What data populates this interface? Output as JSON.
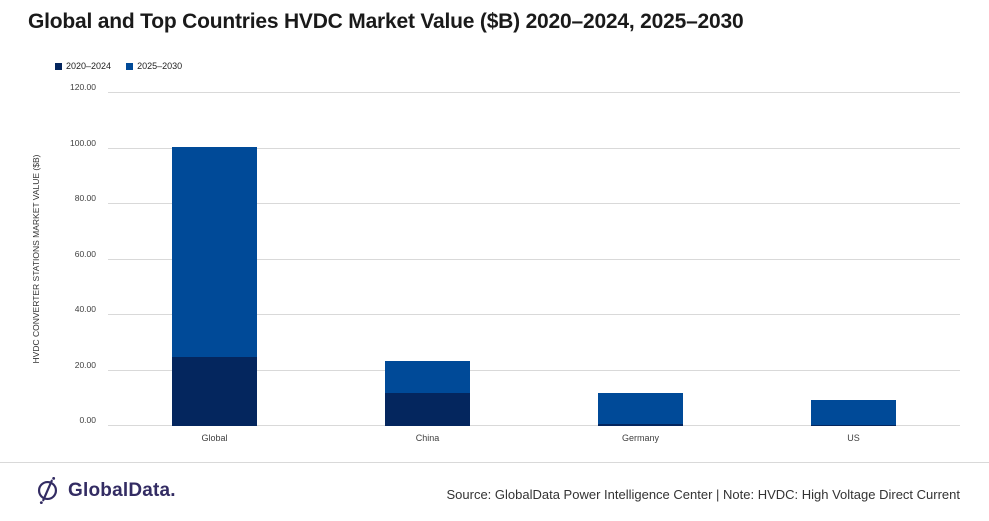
{
  "title": "Global and Top Countries HVDC Market Value ($B) 2020–2024, 2025–2030",
  "chart_data": {
    "type": "bar",
    "stacked": true,
    "title": "Global and Top Countries HVDC Market Value ($B) 2020–2024, 2025–2030",
    "categories": [
      "Global",
      "China",
      "Germany",
      "US"
    ],
    "series": [
      {
        "name": "2020–2024",
        "color": "#04265e",
        "values": [
          25.0,
          12.0,
          0.6,
          0.3
        ]
      },
      {
        "name": "2025–2030",
        "color": "#004a98",
        "values": [
          75.5,
          11.5,
          11.3,
          9.2
        ]
      }
    ],
    "totals": [
      100.5,
      23.5,
      11.9,
      9.5
    ],
    "xlabel": "",
    "ylabel": "HVDC CONVERTER STATIONS MARKET VALUE ($B)",
    "ylim": [
      0,
      120
    ],
    "ytick_labels": [
      "0.00",
      "20.00",
      "40.00",
      "60.00",
      "80.00",
      "100.00",
      "120.00"
    ],
    "grid": true,
    "legend_position": "top-left"
  },
  "colors": {
    "series_2020_2024": "#04265e",
    "series_2025_2030": "#004a98",
    "gridline": "#d9d9d9",
    "title_text": "#1a1a1a",
    "axis_text": "#404040",
    "logo": "#332c63"
  },
  "footer": {
    "logo_text": "GlobalData.",
    "source": "Source: GlobalData Power Intelligence Center | Note: HVDC: High Voltage Direct Current"
  }
}
